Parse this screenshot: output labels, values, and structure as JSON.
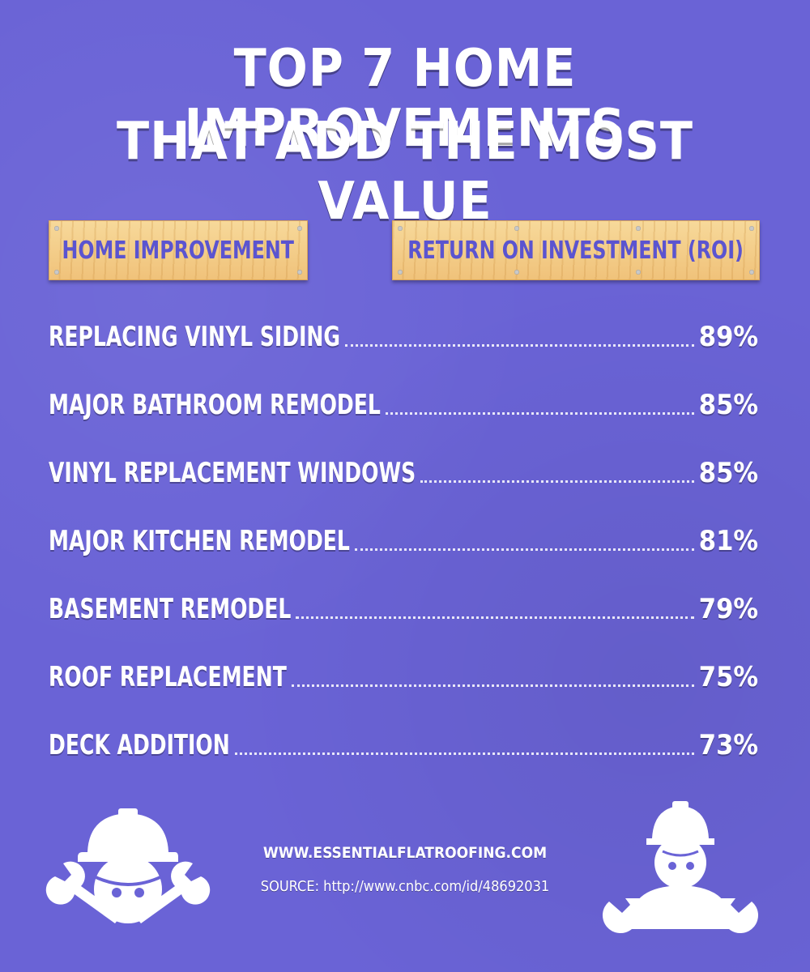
{
  "title": {
    "line1": "TOP 7 HOME IMPROVEMENTS",
    "line2": "THAT ADD THE MOST VALUE"
  },
  "headers": {
    "left": "HOME IMPROVEMENT",
    "right": "RETURN ON INVESTMENT (ROI)"
  },
  "chart_data": {
    "type": "table",
    "title": "TOP 7 HOME IMPROVEMENTS THAT ADD THE MOST VALUE",
    "columns": [
      "HOME IMPROVEMENT",
      "RETURN ON INVESTMENT (ROI)"
    ],
    "categories": [
      "REPLACING VINYL SIDING",
      "MAJOR BATHROOM REMODEL",
      "VINYL REPLACEMENT WINDOWS",
      "MAJOR KITCHEN REMODEL",
      "BASEMENT REMODEL",
      "ROOF REPLACEMENT",
      "DECK ADDITION"
    ],
    "values": [
      89,
      85,
      85,
      81,
      79,
      75,
      73
    ],
    "value_labels": [
      "89%",
      "85%",
      "85%",
      "81%",
      "79%",
      "75%",
      "73%"
    ],
    "unit": "%"
  },
  "footer": {
    "website": "WWW.ESSENTIALFLATROOFING.COM",
    "source": "SOURCE: http://www.cnbc.com/id/48692031"
  },
  "colors": {
    "background": "#6a63d6",
    "plank": "#f0c27a",
    "plank_text": "#5b54d0",
    "text": "#ffffff"
  },
  "icons": [
    "worker-with-wrenches-icon",
    "worker-holding-wrench-icon"
  ]
}
